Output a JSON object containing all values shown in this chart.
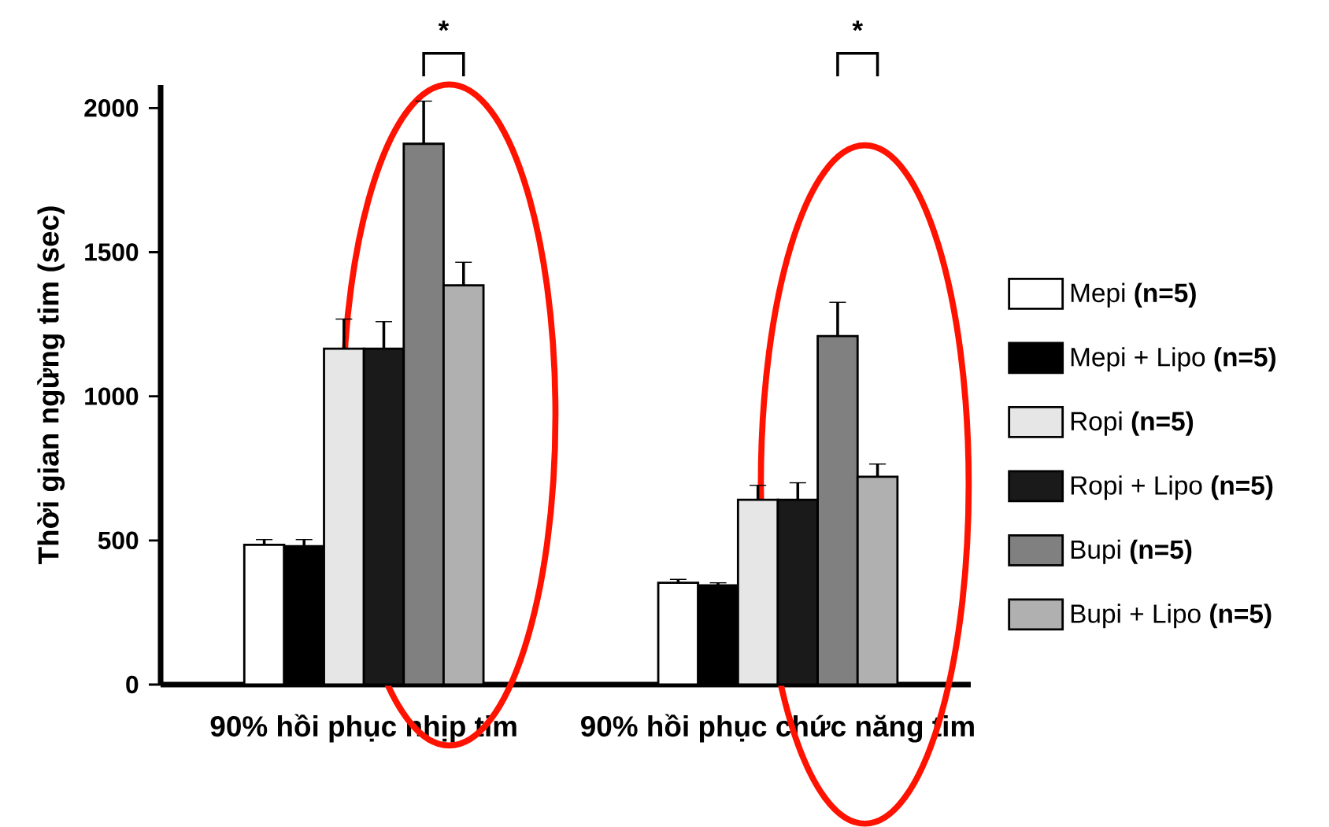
{
  "chart_data": {
    "type": "bar",
    "ylabel": "Thời gian ngừng tim (sec)",
    "categories": [
      "90% hồi phục nhịp tim",
      "90% hồi phục chức năng tim"
    ],
    "series": [
      {
        "name": "Mepi **(n=5)**",
        "color": "#ffffff",
        "values": [
          485,
          353
        ],
        "errors": [
          [
            485,
            503
          ],
          [
            353,
            365
          ]
        ]
      },
      {
        "name": "Mepi + Lipo **(n=5)**",
        "color": "#000000",
        "values": [
          480,
          344
        ],
        "errors": [
          [
            480,
            503
          ],
          [
            344,
            353
          ]
        ]
      },
      {
        "name": "Ropi **(n=5)**",
        "color": "#e6e6e6",
        "values": [
          1165,
          641
        ],
        "errors": [
          [
            1165,
            1268
          ],
          [
            641,
            691
          ]
        ]
      },
      {
        "name": "Ropi + Lipo **(n=5)**",
        "color": "#1a1a1a",
        "values": [
          1165,
          641
        ],
        "errors": [
          [
            1165,
            1259
          ],
          [
            641,
            700
          ]
        ]
      },
      {
        "name": "Bupi **(n=5)**",
        "color": "#808080",
        "values": [
          1876,
          1209
        ],
        "errors": [
          [
            1876,
            2024
          ],
          [
            1209,
            1326
          ]
        ]
      },
      {
        "name": "Bupi + Lipo **(n=5)**",
        "color": "#b0b0b0",
        "values": [
          1385,
          721
        ],
        "errors": [
          [
            1385,
            1465
          ],
          [
            721,
            765
          ]
        ]
      }
    ],
    "ylim": [
      0,
      2080
    ],
    "yticks": [
      0,
      500,
      1000,
      1500,
      2000
    ],
    "annotations": [
      "*",
      "*"
    ],
    "legend": "right",
    "grid": false
  }
}
